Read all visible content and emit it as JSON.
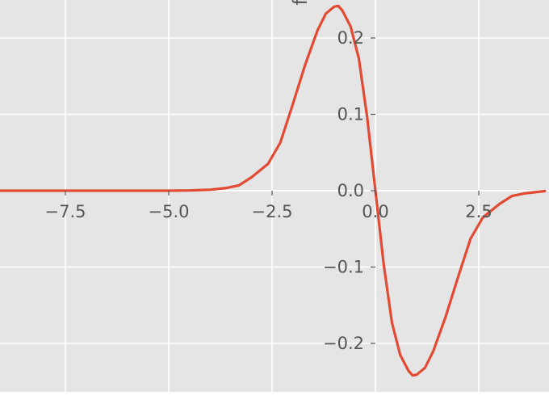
{
  "chart_data": {
    "type": "line",
    "title": "",
    "xlabel": "",
    "ylabel": "f",
    "xlim": [
      -9.1,
      4.1
    ],
    "ylim": [
      -0.265,
      0.25
    ],
    "grid": true,
    "xticks": [
      {
        "value": -7.5,
        "label": "−7.5"
      },
      {
        "value": -5.0,
        "label": "−5.0"
      },
      {
        "value": -2.5,
        "label": "−2.5"
      },
      {
        "value": 0.0,
        "label": "0.0"
      },
      {
        "value": 2.5,
        "label": "2.5"
      }
    ],
    "yticks": [
      {
        "value": 0.2,
        "label": "0.2"
      },
      {
        "value": 0.1,
        "label": "0.1"
      },
      {
        "value": 0.0,
        "label": "0.0"
      },
      {
        "value": -0.1,
        "label": "−0.1"
      },
      {
        "value": -0.2,
        "label": "−0.2"
      }
    ],
    "series": [
      {
        "color": "#E24A33",
        "x": [
          -9.1,
          -8.0,
          -7.0,
          -6.0,
          -5.0,
          -4.5,
          -4.0,
          -3.6,
          -3.3,
          -3.0,
          -2.6,
          -2.3,
          -2.0,
          -1.7,
          -1.4,
          -1.2,
          -1.0,
          -0.9,
          -0.8,
          -0.6,
          -0.4,
          -0.2,
          0.0,
          0.2,
          0.4,
          0.6,
          0.8,
          0.9,
          1.0,
          1.2,
          1.4,
          1.7,
          2.0,
          2.3,
          2.6,
          3.0,
          3.3,
          3.6,
          4.1
        ],
        "y": [
          0.0,
          0.0,
          0.0,
          0.0,
          0.0,
          0.0003,
          0.0013,
          0.0036,
          0.007,
          0.0175,
          0.035,
          0.063,
          0.113,
          0.165,
          0.21,
          0.232,
          0.241,
          0.242,
          0.236,
          0.215,
          0.173,
          0.096,
          0.0,
          -0.096,
          -0.173,
          -0.215,
          -0.236,
          -0.242,
          -0.241,
          -0.232,
          -0.21,
          -0.165,
          -0.113,
          -0.063,
          -0.035,
          -0.0175,
          -0.007,
          -0.0036,
          -0.0005
        ]
      }
    ]
  }
}
